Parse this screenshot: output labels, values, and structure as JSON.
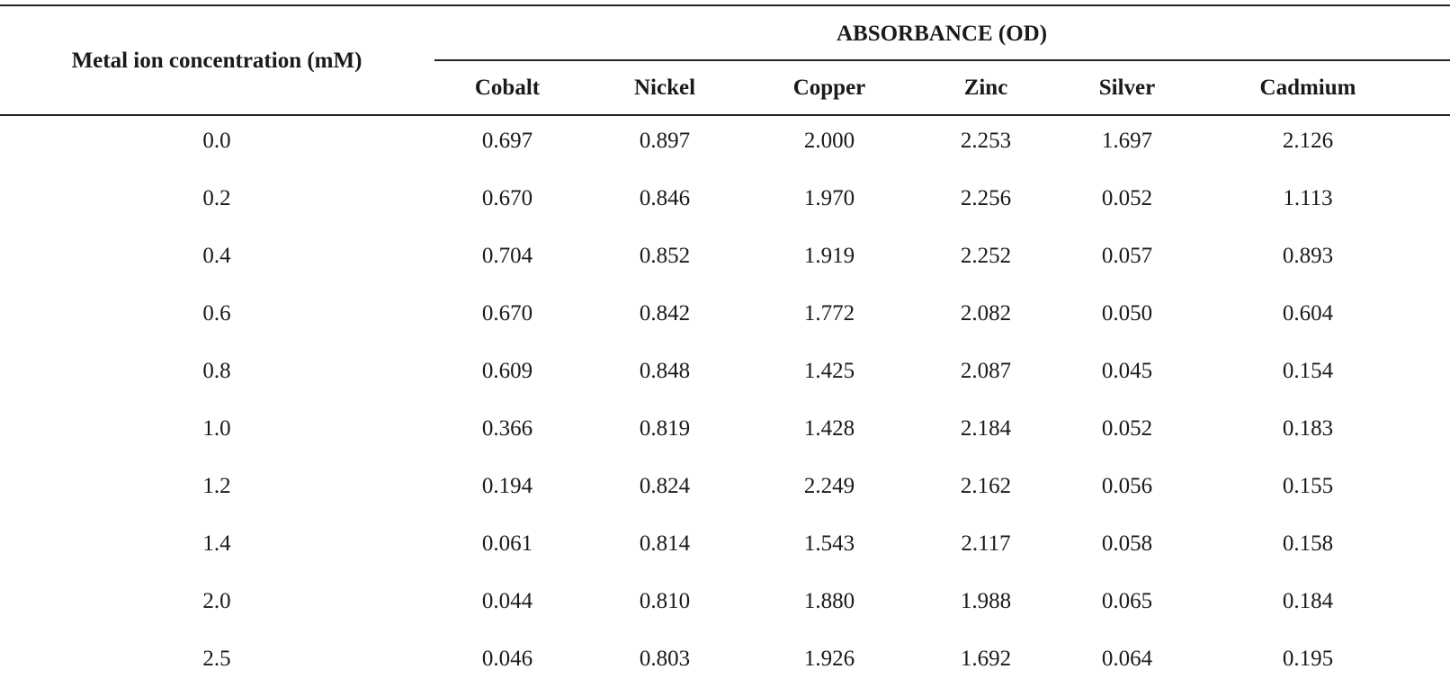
{
  "table": {
    "row_header": "Metal ion concentration (mM)",
    "group_header": "ABSORBANCE (OD)",
    "columns": [
      "Cobalt",
      "Nickel",
      "Copper",
      "Zinc",
      "Silver",
      "Cadmium"
    ],
    "rows": [
      {
        "concentration": "0.0",
        "values": [
          "0.697",
          "0.897",
          "2.000",
          "2.253",
          "1.697",
          "2.126"
        ]
      },
      {
        "concentration": "0.2",
        "values": [
          "0.670",
          "0.846",
          "1.970",
          "2.256",
          "0.052",
          "1.113"
        ]
      },
      {
        "concentration": "0.4",
        "values": [
          "0.704",
          "0.852",
          "1.919",
          "2.252",
          "0.057",
          "0.893"
        ]
      },
      {
        "concentration": "0.6",
        "values": [
          "0.670",
          "0.842",
          "1.772",
          "2.082",
          "0.050",
          "0.604"
        ]
      },
      {
        "concentration": "0.8",
        "values": [
          "0.609",
          "0.848",
          "1.425",
          "2.087",
          "0.045",
          "0.154"
        ]
      },
      {
        "concentration": "1.0",
        "values": [
          "0.366",
          "0.819",
          "1.428",
          "2.184",
          "0.052",
          "0.183"
        ]
      },
      {
        "concentration": "1.2",
        "values": [
          "0.194",
          "0.824",
          "2.249",
          "2.162",
          "0.056",
          "0.155"
        ]
      },
      {
        "concentration": "1.4",
        "values": [
          "0.061",
          "0.814",
          "1.543",
          "2.117",
          "0.058",
          "0.158"
        ]
      },
      {
        "concentration": "2.0",
        "values": [
          "0.044",
          "0.810",
          "1.880",
          "1.988",
          "0.065",
          "0.184"
        ]
      },
      {
        "concentration": "2.5",
        "values": [
          "0.046",
          "0.803",
          "1.926",
          "1.692",
          "0.064",
          "0.195"
        ]
      }
    ]
  }
}
